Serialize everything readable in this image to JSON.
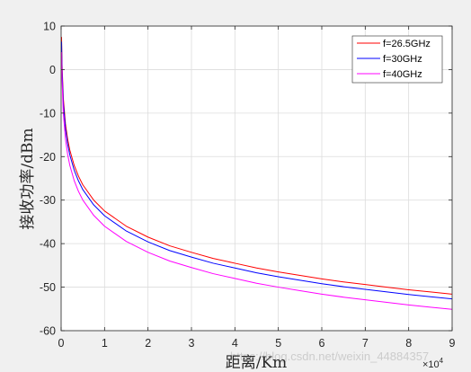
{
  "colors": {
    "figure_background": "#f0f0f0",
    "plot_background": "#ffffff",
    "axes": "#262626",
    "grid": "#dcdcdc"
  },
  "watermark": "https://blog.csdn.net/weixin_44884357",
  "chart_data": {
    "type": "line",
    "title": "",
    "xlabel": "距离/Km",
    "ylabel": "接收功率/dBm",
    "x_multiplier": {
      "base": "×10",
      "exponent": "4"
    },
    "xlim": [
      0,
      9
    ],
    "ylim": [
      -60,
      10
    ],
    "xticks": [
      0,
      1,
      2,
      3,
      4,
      5,
      6,
      7,
      8,
      9
    ],
    "yticks": [
      10,
      0,
      -10,
      -20,
      -30,
      -40,
      -50,
      -60
    ],
    "grid": true,
    "legend_position": "top-right",
    "x": [
      0.01,
      0.02,
      0.05,
      0.1,
      0.15,
      0.2,
      0.3,
      0.4,
      0.5,
      0.75,
      1,
      1.5,
      2,
      2.5,
      3,
      3.5,
      4,
      4.5,
      5,
      5.5,
      6,
      6.5,
      7,
      7.5,
      8,
      8.5,
      9
    ],
    "series": [
      {
        "name": "f=26.5GHz",
        "color": "#ff0000",
        "values": [
          7.5,
          1.5,
          -6.5,
          -12.5,
          -16.0,
          -18.5,
          -22.0,
          -24.5,
          -26.5,
          -30.0,
          -32.5,
          -36.0,
          -38.5,
          -40.5,
          -42.0,
          -43.4,
          -44.5,
          -45.6,
          -46.5,
          -47.3,
          -48.1,
          -48.8,
          -49.4,
          -50.0,
          -50.6,
          -51.1,
          -51.6
        ]
      },
      {
        "name": "f=30GHz",
        "color": "#0000ff",
        "values": [
          6.4,
          0.4,
          -7.6,
          -13.6,
          -17.1,
          -19.6,
          -23.1,
          -25.6,
          -27.6,
          -31.1,
          -33.6,
          -37.1,
          -39.6,
          -41.6,
          -43.1,
          -44.5,
          -45.6,
          -46.7,
          -47.6,
          -48.4,
          -49.2,
          -49.9,
          -50.5,
          -51.1,
          -51.7,
          -52.2,
          -52.7
        ]
      },
      {
        "name": "f=40GHz",
        "color": "#ff00ff",
        "values": [
          4.0,
          -2.0,
          -10.0,
          -16.0,
          -19.5,
          -22.0,
          -25.5,
          -28.0,
          -30.0,
          -33.5,
          -36.0,
          -39.5,
          -42.0,
          -44.0,
          -45.5,
          -46.9,
          -48.0,
          -49.1,
          -50.0,
          -50.8,
          -51.6,
          -52.3,
          -52.9,
          -53.5,
          -54.1,
          -54.6,
          -55.1
        ]
      }
    ]
  }
}
